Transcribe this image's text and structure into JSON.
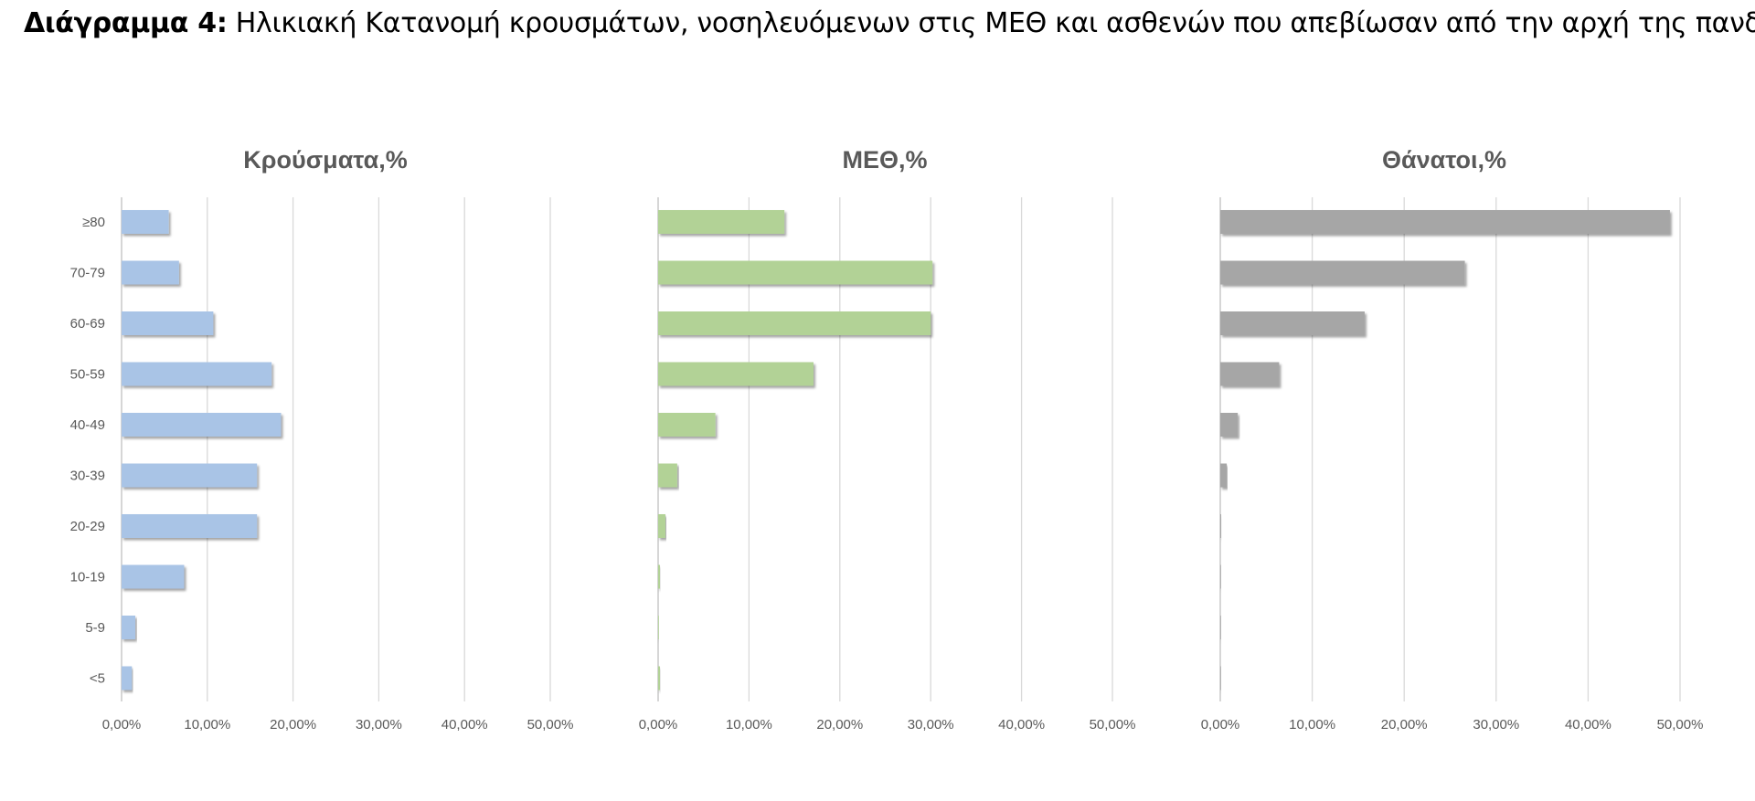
{
  "heading": {
    "label": "Διάγραμμα 4",
    "separator": ":",
    "text": " Ηλικιακή Κατανομή κρουσμάτων, νοσηλευόμενων στις ΜΕΘ και ασθενών που απεβίωσαν από την αρχή της πανδημίας"
  },
  "chart_data": [
    {
      "type": "bar",
      "orientation": "horizontal",
      "title": "Κρούσματα,%",
      "categories": [
        "≥80",
        "70-79",
        "60-69",
        "50-59",
        "40-49",
        "30-39",
        "20-29",
        "10-19",
        "5-9",
        "<5"
      ],
      "values": [
        5.5,
        6.7,
        10.7,
        17.5,
        18.6,
        15.8,
        15.8,
        7.3,
        1.6,
        1.2
      ],
      "xlim": [
        0,
        50
      ],
      "xticks": [
        "0,00%",
        "10,00%",
        "20,00%",
        "30,00%",
        "40,00%",
        "50,00%"
      ],
      "color": "#a9c4e6",
      "grid": true
    },
    {
      "type": "bar",
      "orientation": "horizontal",
      "title": "ΜΕΘ,%",
      "categories": [
        "≥80",
        "70-79",
        "60-69",
        "50-59",
        "40-49",
        "30-39",
        "20-29",
        "10-19",
        "5-9",
        "<5"
      ],
      "values": [
        13.9,
        30.2,
        30.0,
        17.1,
        6.3,
        2.1,
        0.8,
        0.2,
        0.0,
        0.2
      ],
      "xlim": [
        0,
        50
      ],
      "xticks": [
        "0,00%",
        "10,00%",
        "20,00%",
        "30,00%",
        "40,00%",
        "50,00%"
      ],
      "color": "#b2d296",
      "grid": true
    },
    {
      "type": "bar",
      "orientation": "horizontal",
      "title": "Θάνατοι,%",
      "categories": [
        "≥80",
        "70-79",
        "60-69",
        "50-59",
        "40-49",
        "30-39",
        "20-29",
        "10-19",
        "5-9",
        "<5"
      ],
      "values": [
        48.9,
        26.6,
        15.7,
        6.4,
        1.9,
        0.7,
        0.1,
        0.05,
        0.0,
        0.05
      ],
      "xlim": [
        0,
        50
      ],
      "xticks": [
        "0,00%",
        "10,00%",
        "20,00%",
        "30,00%",
        "40,00%",
        "50,00%"
      ],
      "color": "#a6a6a6",
      "grid": true
    }
  ]
}
